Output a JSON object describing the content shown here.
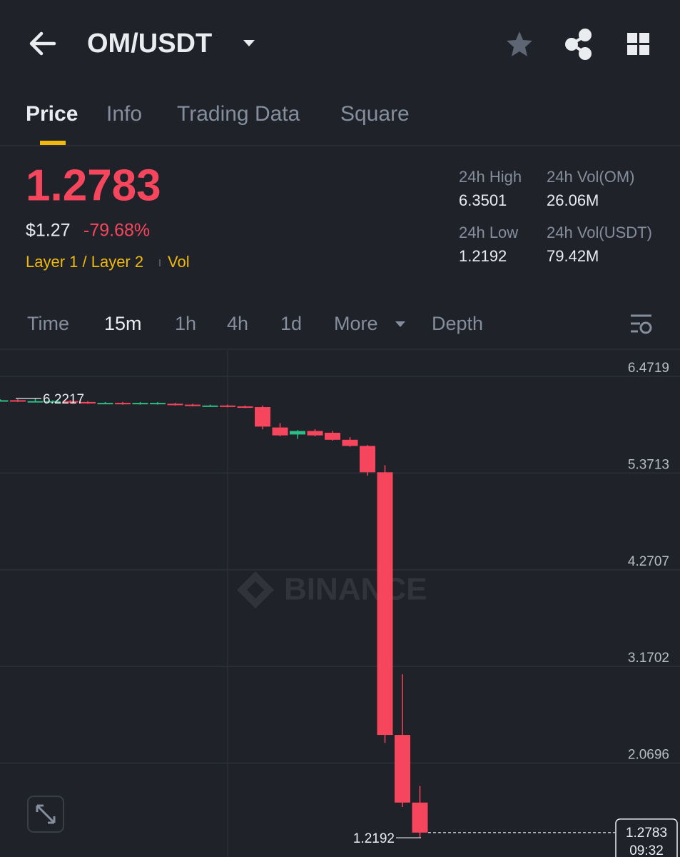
{
  "header": {
    "pair": "OM/USDT"
  },
  "tabs": [
    "Price",
    "Info",
    "Trading Data",
    "Square"
  ],
  "ticker": {
    "price": "1.2783",
    "usd_price": "$1.27",
    "change": "-79.68%",
    "tags": "Layer 1 / Layer 2",
    "vol_tag": "Vol",
    "stats": [
      {
        "label": "24h High",
        "value": "6.3501"
      },
      {
        "label": "24h Vol(OM)",
        "value": "26.06M"
      },
      {
        "label": "24h Low",
        "value": "1.2192"
      },
      {
        "label": "24h Vol(USDT)",
        "value": "79.42M"
      }
    ]
  },
  "intervals": [
    "Time",
    "15m",
    "1h",
    "4h",
    "1d",
    "More",
    "Depth"
  ],
  "chart_data": {
    "type": "candlestick",
    "watermark": "BINANCE",
    "open": [
      6.2,
      6.2,
      6.19,
      6.19,
      6.19,
      6.18,
      6.17,
      6.17,
      6.16,
      6.16,
      6.16,
      6.15,
      6.14,
      6.14,
      6.13,
      6.1223,
      5.89,
      5.81,
      5.85,
      5.83,
      5.75,
      5.68,
      5.38,
      2.39,
      1.62
    ],
    "close": [
      6.2,
      6.19,
      6.19,
      6.19,
      6.18,
      6.17,
      6.17,
      6.16,
      6.17,
      6.17,
      6.15,
      6.14,
      6.14,
      6.13,
      6.12,
      5.9,
      5.8,
      5.85,
      5.8,
      5.75,
      5.68,
      5.38,
      2.39,
      1.62,
      1.2783
    ],
    "high": [
      6.21,
      6.21,
      6.2217,
      6.2,
      6.2,
      6.19,
      6.18,
      6.18,
      6.18,
      6.18,
      6.17,
      6.16,
      6.15,
      6.15,
      6.14,
      6.14,
      5.94,
      5.86,
      5.87,
      5.85,
      5.78,
      5.69,
      5.46,
      3.08,
      1.81
    ],
    "low": [
      6.19,
      6.18,
      6.18,
      6.18,
      6.17,
      6.16,
      6.16,
      6.15,
      6.15,
      6.15,
      6.14,
      6.13,
      6.13,
      6.12,
      6.11,
      5.87,
      5.79,
      5.76,
      5.79,
      5.74,
      5.67,
      5.34,
      2.3,
      1.57,
      1.2192
    ],
    "up_color": "#2ebd85",
    "down_color": "#f6465d",
    "ylim": [
      1.0004,
      6.7727
    ],
    "yticks": [
      6.4719,
      5.3713,
      4.2707,
      3.1702,
      2.0696
    ],
    "grid": true,
    "max_index": 2,
    "min_index": 24,
    "countdown": "09:32"
  }
}
